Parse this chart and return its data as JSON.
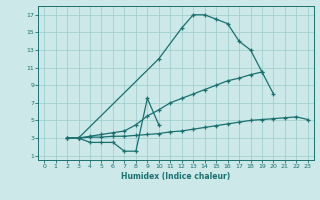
{
  "title": "",
  "xlabel": "Humidex (Indice chaleur)",
  "bg_color": "#cce8e8",
  "line_color": "#1a7070",
  "grid_color": "#99cccc",
  "xlim": [
    -0.5,
    23.5
  ],
  "ylim": [
    0.5,
    18
  ],
  "xticks": [
    0,
    1,
    2,
    3,
    4,
    5,
    6,
    7,
    8,
    9,
    10,
    11,
    12,
    13,
    14,
    15,
    16,
    17,
    18,
    19,
    20,
    21,
    22,
    23
  ],
  "yticks": [
    1,
    3,
    5,
    7,
    9,
    11,
    13,
    15,
    17
  ],
  "line1_x": [
    2,
    3,
    10,
    12,
    13,
    14,
    15,
    16,
    17,
    18,
    19
  ],
  "line1_y": [
    3,
    3,
    12,
    15.5,
    17,
    17,
    16.5,
    16,
    14,
    13,
    10.5
  ],
  "line2_x": [
    2,
    3,
    4,
    5,
    6,
    7,
    8,
    9,
    10,
    11,
    12,
    13,
    14,
    15,
    16,
    17,
    18,
    19,
    20
  ],
  "line2_y": [
    3,
    3,
    3.2,
    3.4,
    3.6,
    3.8,
    4.5,
    5.5,
    6.2,
    7.0,
    7.5,
    8.0,
    8.5,
    9.0,
    9.5,
    9.8,
    10.2,
    10.5,
    8.0
  ],
  "line3_x": [
    2,
    3,
    4,
    5,
    6,
    7,
    8,
    9,
    10,
    11,
    12,
    13,
    14,
    15,
    16,
    17,
    18,
    19,
    20,
    21,
    22,
    23
  ],
  "line3_y": [
    3,
    3,
    3.1,
    3.1,
    3.2,
    3.2,
    3.3,
    3.4,
    3.5,
    3.7,
    3.8,
    4.0,
    4.2,
    4.4,
    4.6,
    4.8,
    5.0,
    5.1,
    5.2,
    5.3,
    5.4,
    5.1
  ],
  "line4_x": [
    3,
    4,
    5,
    6,
    7,
    8,
    9,
    10
  ],
  "line4_y": [
    3,
    2.5,
    2.5,
    2.5,
    1.5,
    1.5,
    7.5,
    4.5
  ]
}
